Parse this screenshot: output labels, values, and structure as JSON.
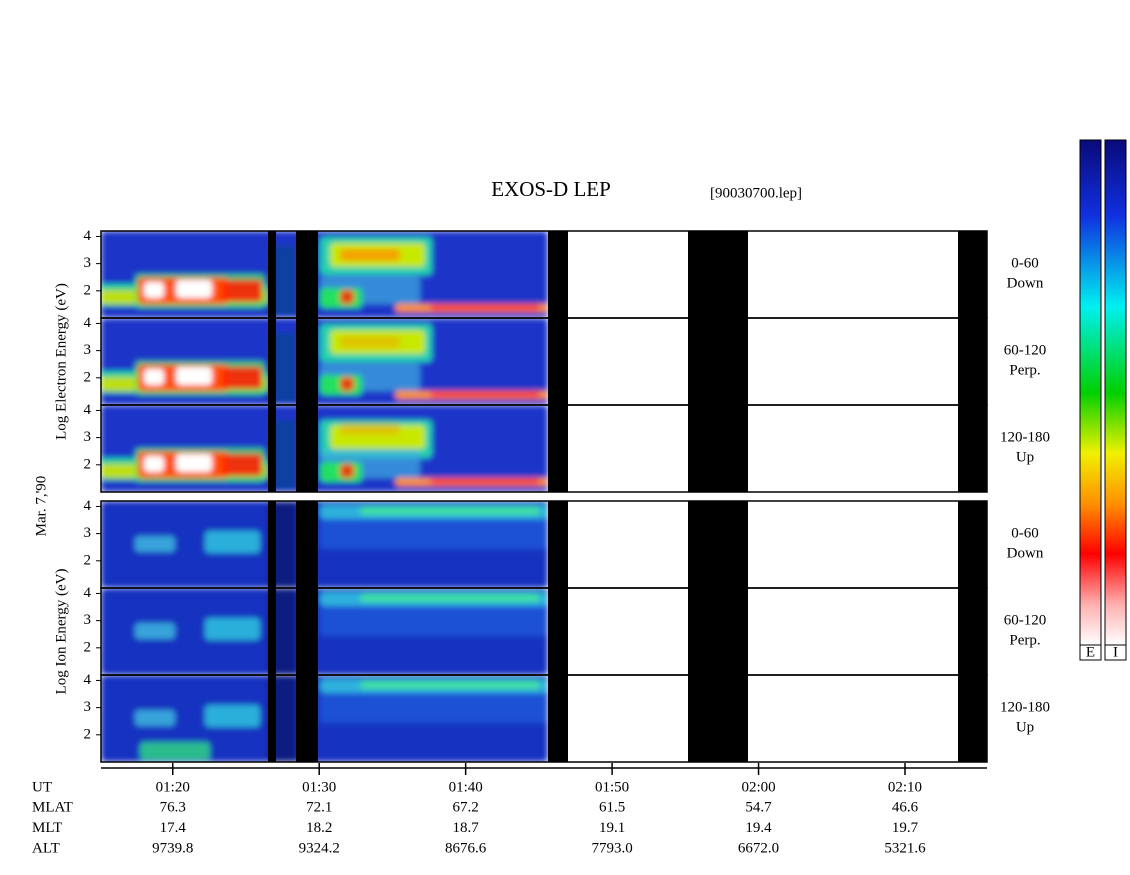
{
  "title": "EXOS-D LEP",
  "file": "[90030700.lep]",
  "date": "Mar. 7,'90",
  "groups": [
    {
      "axis_label": "Log Electron Energy (eV)",
      "panels": [
        {
          "range": "0-60",
          "direction": "Down"
        },
        {
          "range": "60-120",
          "direction": "Perp."
        },
        {
          "range": "120-180",
          "direction": "Up"
        }
      ]
    },
    {
      "axis_label": "Log Ion Energy (eV)",
      "panels": [
        {
          "range": "0-60",
          "direction": "Down"
        },
        {
          "range": "60-120",
          "direction": "Perp."
        },
        {
          "range": "120-180",
          "direction": "Up"
        }
      ]
    }
  ],
  "ylim": [
    1,
    4.2
  ],
  "yticks": [
    2,
    3,
    4
  ],
  "xlim": [
    75.1,
    135.6
  ],
  "xticks": [
    {
      "value": 80,
      "label": "01:20"
    },
    {
      "value": 90,
      "label": "01:30"
    },
    {
      "value": 100,
      "label": "01:40"
    },
    {
      "value": 110,
      "label": "01:50"
    },
    {
      "value": 120,
      "label": "02:00"
    },
    {
      "value": 130,
      "label": "02:10"
    }
  ],
  "table": {
    "ut_label": "UT",
    "rows": [
      {
        "name": "MLAT",
        "values": [
          "76.3",
          "72.1",
          "67.2",
          "61.5",
          "54.7",
          "46.6"
        ]
      },
      {
        "name": "MLT",
        "values": [
          "17.4",
          "18.2",
          "18.7",
          "19.1",
          "19.4",
          "19.7"
        ]
      },
      {
        "name": "ALT",
        "values": [
          "9739.8",
          "9324.2",
          "8676.6",
          "7793.0",
          "6672.0",
          "5321.6"
        ]
      }
    ]
  },
  "colorbar": {
    "labels": [
      "E",
      "I"
    ]
  }
}
